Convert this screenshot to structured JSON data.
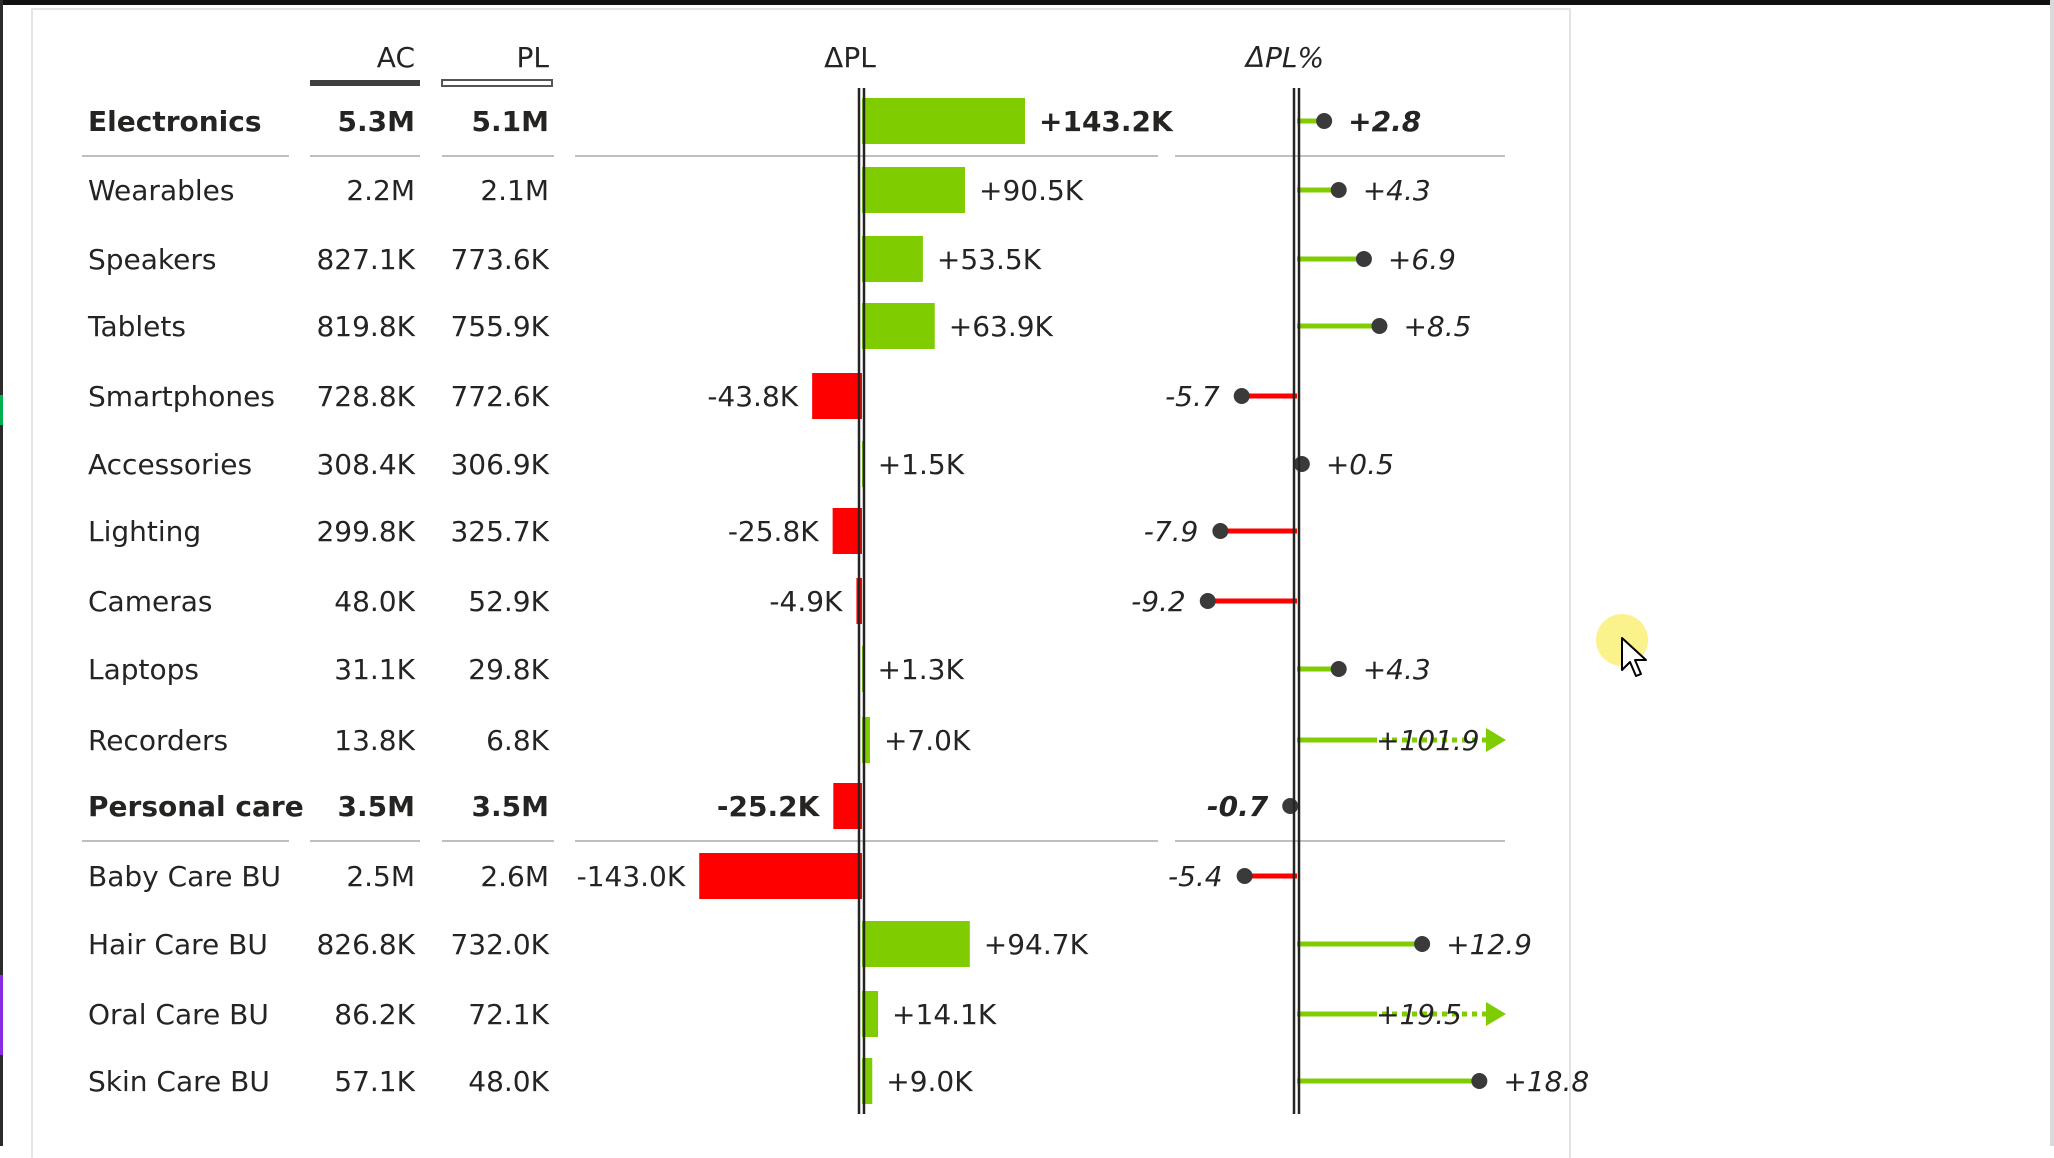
{
  "chart_data": {
    "type": "table",
    "columns": {
      "actual": "AC",
      "plan": "PL",
      "delta_abs": "ΔPL",
      "delta_pct": "ΔPL%"
    },
    "rows": [
      {
        "category": "Electronics",
        "ac": "5.3M",
        "pl": "5.1M",
        "delta": 143.2,
        "delta_label": "+143.2K",
        "pct": 2.8,
        "pct_label": "+2.8",
        "total": true
      },
      {
        "category": "Wearables",
        "ac": "2.2M",
        "pl": "2.1M",
        "delta": 90.5,
        "delta_label": "+90.5K",
        "pct": 4.3,
        "pct_label": "+4.3"
      },
      {
        "category": "Speakers",
        "ac": "827.1K",
        "pl": "773.6K",
        "delta": 53.5,
        "delta_label": "+53.5K",
        "pct": 6.9,
        "pct_label": "+6.9"
      },
      {
        "category": "Tablets",
        "ac": "819.8K",
        "pl": "755.9K",
        "delta": 63.9,
        "delta_label": "+63.9K",
        "pct": 8.5,
        "pct_label": "+8.5"
      },
      {
        "category": "Smartphones",
        "ac": "728.8K",
        "pl": "772.6K",
        "delta": -43.8,
        "delta_label": "-43.8K",
        "pct": -5.7,
        "pct_label": "-5.7"
      },
      {
        "category": "Accessories",
        "ac": "308.4K",
        "pl": "306.9K",
        "delta": 1.5,
        "delta_label": "+1.5K",
        "pct": 0.5,
        "pct_label": "+0.5"
      },
      {
        "category": "Lighting",
        "ac": "299.8K",
        "pl": "325.7K",
        "delta": -25.8,
        "delta_label": "-25.8K",
        "pct": -7.9,
        "pct_label": "-7.9"
      },
      {
        "category": "Cameras",
        "ac": "48.0K",
        "pl": "52.9K",
        "delta": -4.9,
        "delta_label": "-4.9K",
        "pct": -9.2,
        "pct_label": "-9.2"
      },
      {
        "category": "Laptops",
        "ac": "31.1K",
        "pl": "29.8K",
        "delta": 1.3,
        "delta_label": "+1.3K",
        "pct": 4.3,
        "pct_label": "+4.3"
      },
      {
        "category": "Recorders",
        "ac": "13.8K",
        "pl": "6.8K",
        "delta": 7.0,
        "delta_label": "+7.0K",
        "pct": 101.9,
        "pct_label": "+101.9",
        "clipped": true
      },
      {
        "category": "Personal care",
        "ac": "3.5M",
        "pl": "3.5M",
        "delta": -25.2,
        "delta_label": "-25.2K",
        "pct": -0.7,
        "pct_label": "-0.7",
        "total": true
      },
      {
        "category": "Baby Care BU",
        "ac": "2.5M",
        "pl": "2.6M",
        "delta": -143.0,
        "delta_label": "-143.0K",
        "pct": -5.4,
        "pct_label": "-5.4"
      },
      {
        "category": "Hair Care BU",
        "ac": "826.8K",
        "pl": "732.0K",
        "delta": 94.7,
        "delta_label": "+94.7K",
        "pct": 12.9,
        "pct_label": "+12.9"
      },
      {
        "category": "Oral Care BU",
        "ac": "86.2K",
        "pl": "72.1K",
        "delta": 14.1,
        "delta_label": "+14.1K",
        "pct": 19.5,
        "pct_label": "+19.5",
        "clipped": true
      },
      {
        "category": "Skin Care BU",
        "ac": "57.1K",
        "pl": "48.0K",
        "delta": 9.0,
        "delta_label": "+9.0K",
        "pct": 18.8,
        "pct_label": "+18.8"
      }
    ],
    "delta_pct_axis_max": 19,
    "colors": {
      "positive": "#7fcc00",
      "negative": "#ff0000",
      "text": "#252423",
      "axis": "#252423",
      "separator": "#bfbfbf",
      "plan_marker": "#555555"
    }
  }
}
